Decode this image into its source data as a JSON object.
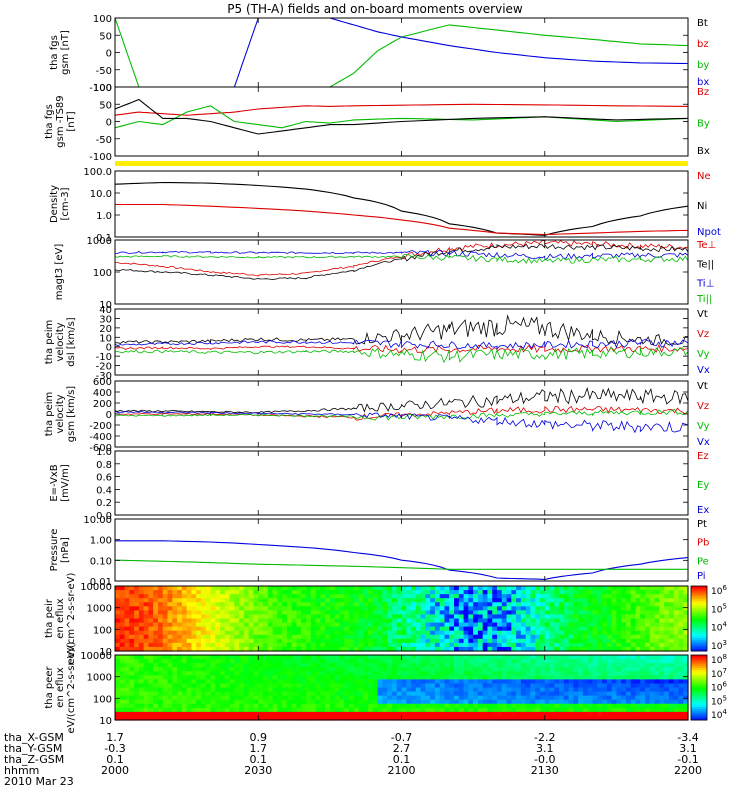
{
  "page": {
    "title": "P5 (TH-A) fields and on-board moments overview",
    "date_label": "2010 Mar 23"
  },
  "footer": {
    "rows": [
      {
        "label": "tha_X-GSM",
        "values": [
          "1.7",
          "0.9",
          "-0.7",
          "-2.2",
          "-3.4"
        ]
      },
      {
        "label": "tha_Y-GSM",
        "values": [
          "-0.3",
          "1.7",
          "2.7",
          "3.1",
          "3.1"
        ]
      },
      {
        "label": "tha_Z-GSM",
        "values": [
          "0.1",
          "0.1",
          "0.1",
          "-0.0",
          "-0.1"
        ]
      },
      {
        "label": "hhmm",
        "values": [
          "2000",
          "2030",
          "2100",
          "2130",
          "2200"
        ]
      }
    ]
  },
  "chart_data": [
    {
      "type": "line",
      "ylabel": "tha fgs gsm [nT]",
      "ylim": [
        -100,
        100
      ],
      "yticks": [
        "100",
        "50",
        "0",
        "-50",
        "-100"
      ],
      "legend": [
        {
          "name": "Bt",
          "color": "#000000"
        },
        {
          "name": "bz",
          "color": "#dd0000"
        },
        {
          "name": "by",
          "color": "#00bb00"
        },
        {
          "name": "bx",
          "color": "#0000dd"
        }
      ],
      "x": [
        "20:00",
        "20:05",
        "20:10",
        "20:15",
        "20:20",
        "20:25",
        "20:30",
        "20:35",
        "20:40",
        "20:45",
        "20:50",
        "20:55",
        "21:00",
        "21:10",
        "21:20",
        "21:30",
        "21:40",
        "21:50",
        "22:00"
      ],
      "series": [
        {
          "name": "by",
          "values": [
            100,
            -100,
            null,
            null,
            null,
            null,
            null,
            null,
            null,
            -100,
            -60,
            5,
            45,
            80,
            65,
            50,
            38,
            25,
            20
          ]
        },
        {
          "name": "bx",
          "values": [
            null,
            null,
            null,
            null,
            null,
            -100,
            100,
            null,
            null,
            100,
            80,
            60,
            45,
            20,
            0,
            -15,
            -25,
            -30,
            -32
          ]
        }
      ]
    },
    {
      "type": "line",
      "ylabel": "tha fgs gsm -TS89 [nT]",
      "ylim": [
        -120,
        100
      ],
      "yticks": [
        "100",
        "50",
        "0",
        "-50",
        "-100"
      ],
      "legend": [
        {
          "name": "Bz",
          "color": "#dd0000"
        },
        {
          "name": "By",
          "color": "#00bb00"
        },
        {
          "name": "Bx",
          "color": "#000000"
        }
      ],
      "x": [
        "20:00",
        "20:05",
        "20:10",
        "20:15",
        "20:20",
        "20:25",
        "20:30",
        "20:35",
        "20:40",
        "20:45",
        "20:50",
        "21:00",
        "21:15",
        "21:30",
        "21:45",
        "22:00"
      ],
      "series": [
        {
          "name": "Bz",
          "values": [
            10,
            20,
            15,
            10,
            15,
            20,
            30,
            35,
            40,
            38,
            40,
            42,
            45,
            43,
            40,
            38
          ]
        },
        {
          "name": "By",
          "values": [
            -30,
            -10,
            -20,
            20,
            40,
            -10,
            -20,
            -30,
            -10,
            -15,
            -5,
            0,
            -5,
            5,
            -10,
            0
          ]
        },
        {
          "name": "Bx",
          "values": [
            30,
            60,
            0,
            0,
            -10,
            -30,
            -50,
            -40,
            -30,
            -20,
            -20,
            -10,
            0,
            5,
            -5,
            0
          ]
        }
      ]
    },
    {
      "type": "line",
      "ylabel": "Density [cm-3]",
      "yscale": "log",
      "ylim": [
        0.1,
        100
      ],
      "yticks": [
        "100.0",
        "10.0",
        "1.0",
        "0.1"
      ],
      "legend": [
        {
          "name": "Ne",
          "color": "#dd0000"
        },
        {
          "name": "Ni",
          "color": "#000000"
        },
        {
          "name": "Npot",
          "color": "#0000dd"
        }
      ],
      "x": [
        "20:00",
        "20:10",
        "20:20",
        "20:30",
        "20:40",
        "20:50",
        "21:00",
        "21:10",
        "21:20",
        "21:30",
        "21:40",
        "21:50",
        "22:00"
      ],
      "series": [
        {
          "name": "Ni",
          "values": [
            25,
            30,
            28,
            22,
            15,
            6,
            1.5,
            0.4,
            0.15,
            0.12,
            0.3,
            0.9,
            2.5
          ]
        },
        {
          "name": "Ne",
          "values": [
            3,
            3,
            2.5,
            2,
            1.5,
            1,
            0.6,
            0.25,
            0.15,
            0.13,
            0.15,
            0.18,
            0.2
          ]
        }
      ]
    },
    {
      "type": "line",
      "ylabel": "magt3 [eV]",
      "yscale": "log",
      "ylim": [
        10,
        1000
      ],
      "yticks": [
        "1000",
        "100",
        "10"
      ],
      "legend": [
        {
          "name": "Te⊥",
          "color": "#dd0000"
        },
        {
          "name": "Te||",
          "color": "#000000"
        },
        {
          "name": "Ti⊥",
          "color": "#0000dd"
        },
        {
          "name": "Ti||",
          "color": "#00bb00"
        }
      ],
      "x": [
        "20:00",
        "20:10",
        "20:20",
        "20:30",
        "20:40",
        "20:50",
        "21:00",
        "21:10",
        "21:20",
        "21:30",
        "21:40",
        "21:50",
        "22:00"
      ],
      "series": [
        {
          "name": "Te⊥",
          "values": [
            200,
            150,
            100,
            80,
            90,
            150,
            300,
            550,
            700,
            800,
            750,
            650,
            600
          ]
        },
        {
          "name": "Te||",
          "values": [
            120,
            100,
            80,
            60,
            65,
            110,
            250,
            450,
            600,
            650,
            600,
            550,
            500
          ]
        },
        {
          "name": "Ti⊥",
          "values": [
            400,
            420,
            410,
            400,
            400,
            400,
            400,
            380,
            350,
            300,
            320,
            330,
            340
          ]
        },
        {
          "name": "Ti||",
          "values": [
            300,
            310,
            300,
            290,
            290,
            300,
            300,
            280,
            250,
            220,
            240,
            250,
            260
          ]
        }
      ]
    },
    {
      "type": "line",
      "ylabel": "tha peim velocity dsl [km/s]",
      "ylim": [
        -30,
        40
      ],
      "yticks": [
        "40",
        "30",
        "20",
        "10",
        "0",
        "-10",
        "-20",
        "-30"
      ],
      "legend": [
        {
          "name": "Vt",
          "color": "#000000"
        },
        {
          "name": "Vz",
          "color": "#dd0000"
        },
        {
          "name": "Vy",
          "color": "#00bb00"
        },
        {
          "name": "Vx",
          "color": "#0000dd"
        }
      ],
      "x": [
        "20:00",
        "20:10",
        "20:20",
        "20:30",
        "20:40",
        "20:50",
        "21:00",
        "21:10",
        "21:20",
        "21:30",
        "21:40",
        "21:50",
        "22:00"
      ],
      "series": [
        {
          "name": "Vt",
          "values": [
            5,
            5,
            6,
            8,
            7,
            8,
            12,
            18,
            22,
            20,
            12,
            8,
            6
          ]
        },
        {
          "name": "Vz",
          "values": [
            -2,
            -1,
            -2,
            0,
            0,
            -2,
            -3,
            -3,
            -2,
            -3,
            -2,
            -2,
            -2
          ]
        },
        {
          "name": "Vy",
          "values": [
            -5,
            -5,
            -6,
            -6,
            -5,
            -5,
            -8,
            -10,
            -8,
            -8,
            -7,
            -6,
            -5
          ]
        },
        {
          "name": "Vx",
          "values": [
            2,
            3,
            4,
            5,
            5,
            4,
            3,
            2,
            1,
            2,
            3,
            4,
            4
          ]
        }
      ]
    },
    {
      "type": "line",
      "ylabel": "tha peim velocity gsm [km/s]",
      "ylim": [
        -600,
        600
      ],
      "yticks": [
        "600",
        "400",
        "200",
        "0",
        "-200",
        "-400",
        "-600"
      ],
      "legend": [
        {
          "name": "Vt",
          "color": "#000000"
        },
        {
          "name": "Vz",
          "color": "#dd0000"
        },
        {
          "name": "Vy",
          "color": "#00bb00"
        },
        {
          "name": "Vx",
          "color": "#0000dd"
        }
      ],
      "x": [
        "20:00",
        "20:10",
        "20:20",
        "20:30",
        "20:40",
        "20:50",
        "21:00",
        "21:10",
        "21:20",
        "21:30",
        "21:40",
        "21:50",
        "22:00"
      ],
      "series": [
        {
          "name": "Vt",
          "values": [
            60,
            50,
            40,
            30,
            60,
            100,
            150,
            200,
            250,
            320,
            330,
            320,
            300
          ]
        },
        {
          "name": "Vz",
          "values": [
            0,
            0,
            0,
            -20,
            -40,
            -60,
            -20,
            20,
            60,
            80,
            80,
            70,
            60
          ]
        },
        {
          "name": "Vy",
          "values": [
            -30,
            -30,
            -20,
            -20,
            -30,
            -50,
            -60,
            -40,
            -20,
            0,
            20,
            30,
            40
          ]
        },
        {
          "name": "Vx",
          "values": [
            40,
            30,
            20,
            10,
            0,
            -10,
            -40,
            -80,
            -120,
            -180,
            -220,
            -230,
            -240
          ]
        }
      ]
    },
    {
      "type": "line",
      "ylabel": "E=-VxB [mV/m]",
      "ylim": [
        0,
        1
      ],
      "yticks": [
        "1.0",
        "0.8",
        "0.6",
        "0.4",
        "0.2",
        "0.0"
      ],
      "legend": [
        {
          "name": "Ez",
          "color": "#dd0000"
        },
        {
          "name": "Ey",
          "color": "#00bb00"
        },
        {
          "name": "Ex",
          "color": "#0000dd"
        }
      ],
      "series": []
    },
    {
      "type": "line",
      "ylabel": "Pressure [nPa]",
      "yscale": "log",
      "ylim": [
        0.004,
        20
      ],
      "yticks": [
        "10.00",
        "1.00",
        "0.10",
        "0.01"
      ],
      "legend": [
        {
          "name": "Pt",
          "color": "#000000"
        },
        {
          "name": "Pb",
          "color": "#dd0000"
        },
        {
          "name": "Pe",
          "color": "#00bb00"
        },
        {
          "name": "Pi",
          "color": "#0000dd"
        }
      ],
      "x": [
        "20:00",
        "20:10",
        "20:20",
        "20:30",
        "20:40",
        "20:50",
        "21:00",
        "21:10",
        "21:20",
        "21:30",
        "21:40",
        "21:50",
        "22:00"
      ],
      "series": [
        {
          "name": "Pi",
          "values": [
            1.0,
            1.0,
            0.85,
            0.6,
            0.4,
            0.2,
            0.07,
            0.018,
            0.006,
            0.005,
            0.012,
            0.04,
            0.1
          ]
        },
        {
          "name": "Pe",
          "values": [
            0.07,
            0.06,
            0.05,
            0.04,
            0.035,
            0.03,
            0.025,
            0.02,
            0.02,
            0.02,
            0.02,
            0.02,
            0.02
          ]
        }
      ]
    },
    {
      "type": "heatmap",
      "ylabel": "tha peir en eflux eV/(cm^2-s-sr-eV)",
      "yscale": "log",
      "ylim": [
        10,
        20000
      ],
      "yticks": [
        "10000",
        "1000",
        "100",
        "10"
      ],
      "colorbar_ticks": [
        "10^6",
        "10^5",
        "10^4",
        "10^3"
      ]
    },
    {
      "type": "heatmap",
      "ylabel": "tha peer en eflux eV/(cm^2-s-sr-eV)",
      "yscale": "log",
      "ylim": [
        7,
        20000
      ],
      "yticks": [
        "10000",
        "1000",
        "100",
        "10"
      ],
      "colorbar_ticks": [
        "10^8",
        "10^7",
        "10^6",
        "10^5",
        "10^4"
      ]
    }
  ]
}
